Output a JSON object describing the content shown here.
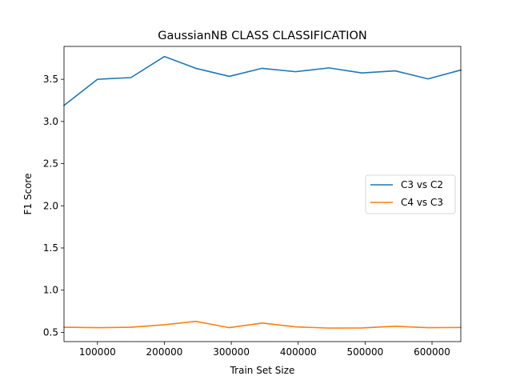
{
  "chart_data": {
    "type": "line",
    "title": "GaussianNB CLASS CLASSIFICATION",
    "xlabel": "Train Set Size",
    "ylabel": "F1 Score",
    "xlim": [
      50000,
      643000
    ],
    "ylim": [
      0.39,
      3.89
    ],
    "xticks": [
      100000,
      200000,
      300000,
      400000,
      500000,
      600000
    ],
    "yticks": [
      0.5,
      1.0,
      1.5,
      2.0,
      2.5,
      3.0,
      3.5
    ],
    "xtick_labels": [
      "100000",
      "200000",
      "300000",
      "400000",
      "500000",
      "600000"
    ],
    "ytick_labels": [
      "0.5",
      "1.0",
      "1.5",
      "2.0",
      "2.5",
      "3.0",
      "3.5"
    ],
    "grid": false,
    "legend_position": "center-right",
    "x": [
      50000,
      100000,
      150000,
      200000,
      247000,
      297000,
      346000,
      396000,
      446000,
      495000,
      545000,
      594000,
      643000
    ],
    "series": [
      {
        "name": "C3 vs C2",
        "color": "#1f77b4",
        "values": [
          3.19,
          3.5,
          3.52,
          3.77,
          3.63,
          3.535,
          3.63,
          3.59,
          3.635,
          3.575,
          3.6,
          3.505,
          3.61
        ]
      },
      {
        "name": "C4 vs C3",
        "color": "#ff7f0e",
        "values": [
          0.56,
          0.555,
          0.56,
          0.59,
          0.63,
          0.555,
          0.61,
          0.565,
          0.55,
          0.552,
          0.572,
          0.555,
          0.557
        ]
      }
    ]
  }
}
